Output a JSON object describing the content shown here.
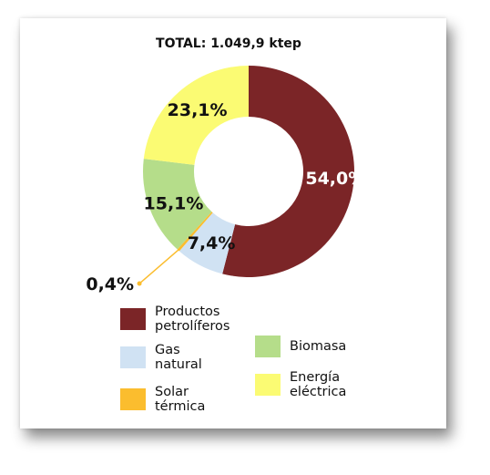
{
  "chart_data": {
    "type": "pie",
    "title": "TOTAL: 1.049,9 ktep",
    "categories": [
      "Productos petrolíferos",
      "Gas natural",
      "Solar térmica",
      "Biomasa",
      "Energía eléctrica"
    ],
    "values": [
      54.0,
      7.4,
      0.4,
      15.1,
      23.1
    ],
    "value_labels": [
      "54,0%",
      "7,4%",
      "0,4%",
      "15,1%",
      "23,1%"
    ],
    "colors": [
      "#7b2527",
      "#d0e2f3",
      "#fbbd2e",
      "#b5dd8a",
      "#fbfb73"
    ],
    "legend": [
      {
        "label": "Productos\npetrolíferos",
        "color": "#7b2527"
      },
      {
        "label": "Gas\nnatural",
        "color": "#d0e2f3"
      },
      {
        "label": "Solar\ntérmica",
        "color": "#fbbd2e"
      },
      {
        "label": "Biomasa",
        "color": "#b5dd8a"
      },
      {
        "label": "Energía\neléctrica",
        "color": "#fbfb73"
      }
    ],
    "legend_placement": "bottom"
  }
}
